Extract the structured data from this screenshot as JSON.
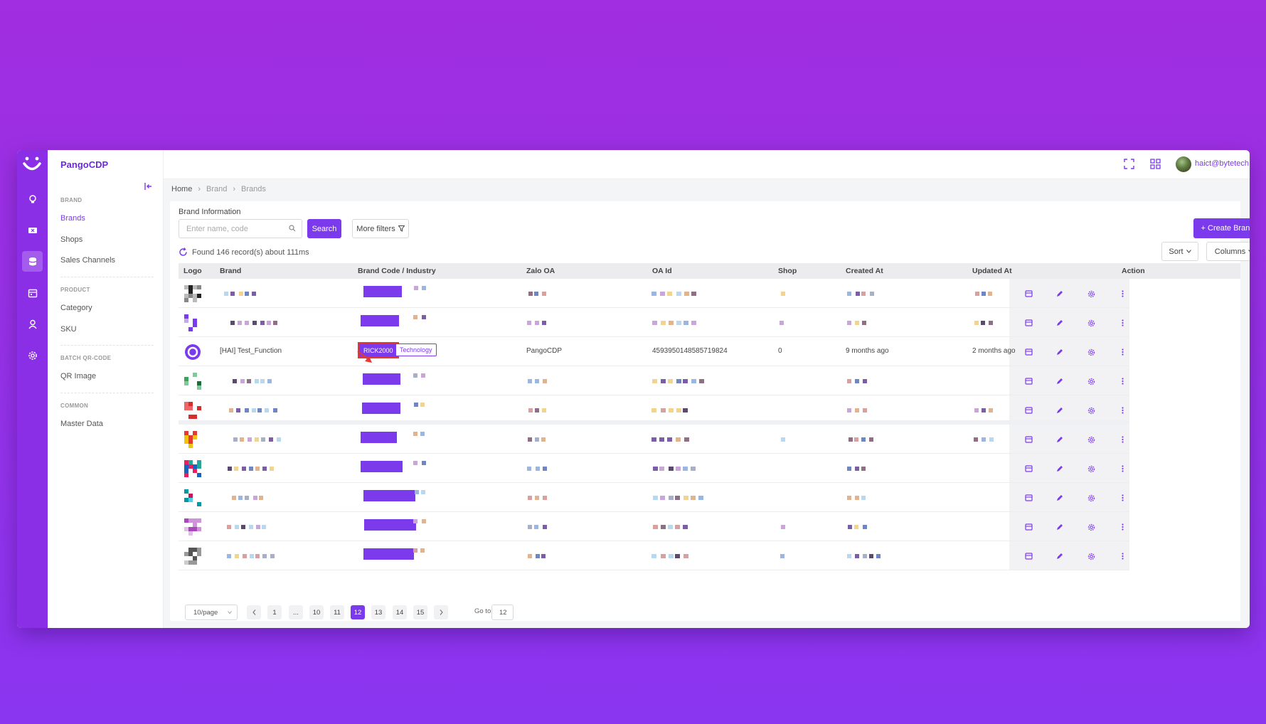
{
  "app": {
    "name": "PangoCDP"
  },
  "header": {
    "user_email": "haict@bytetech.io"
  },
  "sidebar": {
    "sections": [
      {
        "title": "BRAND",
        "items": [
          "Brands",
          "Shops",
          "Sales Channels"
        ]
      },
      {
        "title": "PRODUCT",
        "items": [
          "Category",
          "SKU"
        ]
      },
      {
        "title": "BATCH QR-CODE",
        "items": [
          "QR Image"
        ]
      },
      {
        "title": "COMMON",
        "items": [
          "Master Data"
        ]
      }
    ],
    "active_item": "Brands"
  },
  "breadcrumb": [
    "Home",
    "Brand",
    "Brands"
  ],
  "page": {
    "section_title": "Brand Information",
    "search_placeholder": "Enter name, code",
    "search_button": "Search",
    "more_filters": "More filters",
    "create_button": "+ Create Brand",
    "sort_button": "Sort",
    "columns_button": "Columns",
    "found_text": "Found 146 record(s) about 111ms"
  },
  "table": {
    "columns": [
      "Logo",
      "Brand",
      "Brand Code / Industry",
      "Zalo OA",
      "OA Id",
      "Shop",
      "Created At",
      "Updated At",
      "Action"
    ],
    "highlighted_row": {
      "brand": "[HAI] Test_Function",
      "brand_code": "RICK2000",
      "industry": "Technology",
      "zalo_oa": "PangoCDP",
      "oa_id": "4593950148585719824",
      "shop": "0",
      "created_at": "9 months ago",
      "updated_at": "2 months ago"
    }
  },
  "pagination": {
    "page_size": "10/page",
    "pages": [
      "1",
      "...",
      "10",
      "11",
      "12",
      "13",
      "14",
      "15"
    ],
    "current": "12",
    "goto_label": "Go to",
    "goto_value": "12"
  },
  "colors": {
    "accent": "#7c3aed",
    "rail": "#8a2fe6",
    "annotation": "#e53935"
  }
}
